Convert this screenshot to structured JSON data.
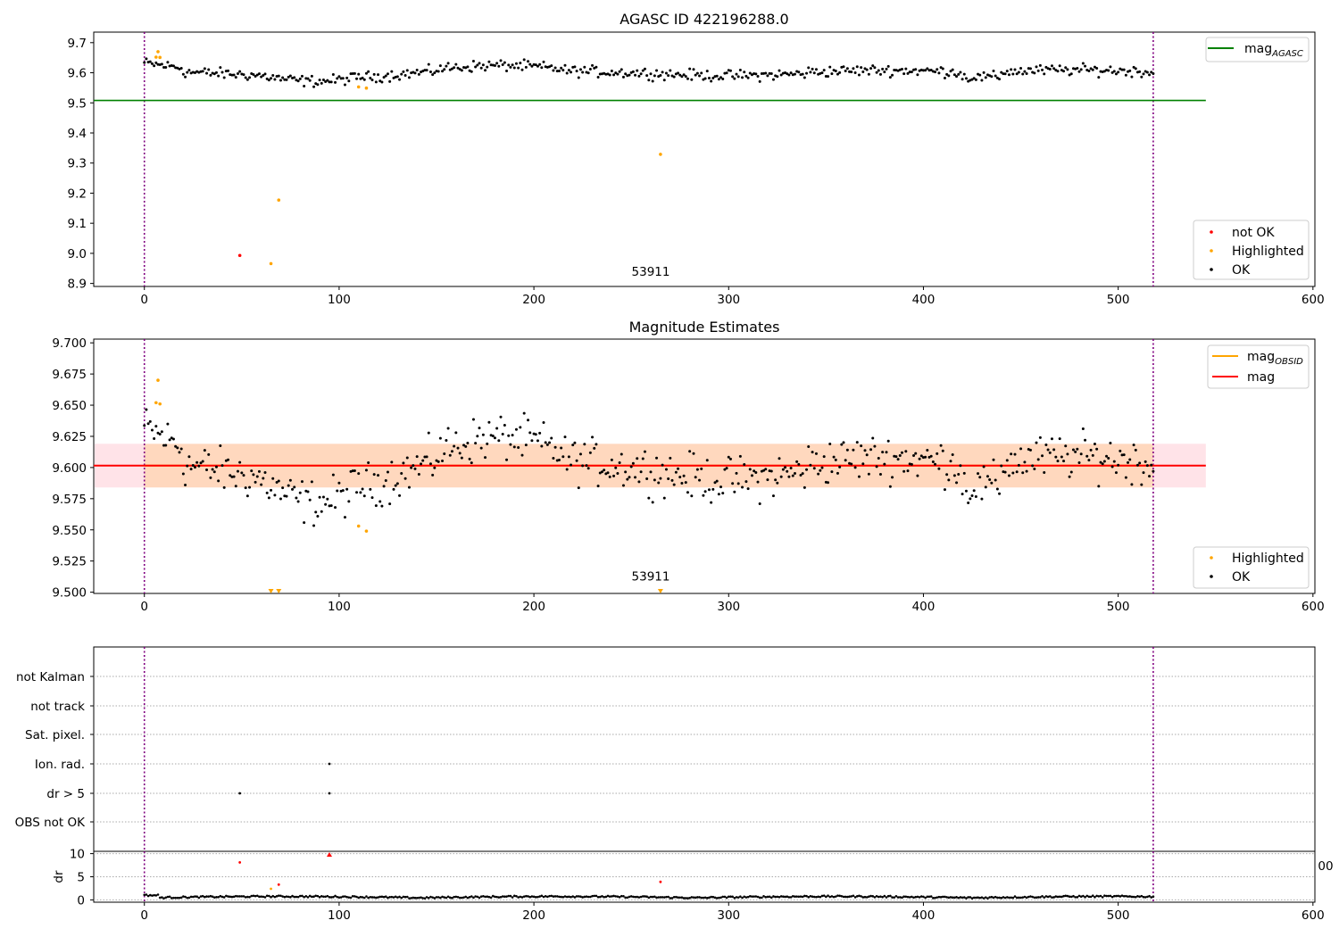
{
  "chart_data": [
    {
      "type": "scatter",
      "title": "AGASC ID 422196288.0",
      "xlim": [
        -26,
        601
      ],
      "ylim": [
        8.89,
        9.735
      ],
      "xticks": [
        0,
        100,
        200,
        300,
        400,
        500,
        600
      ],
      "yticks": [
        8.9,
        9.0,
        9.1,
        9.2,
        9.3,
        9.4,
        9.5,
        9.6,
        9.7
      ],
      "ytick_labels": [
        "8.9",
        "9.0",
        "9.1",
        "9.2",
        "9.3",
        "9.4",
        "9.5",
        "9.6",
        "9.7"
      ],
      "vlines": [
        0,
        518
      ],
      "mag_agasc": {
        "value": 9.508,
        "x_range": [
          -26,
          545
        ],
        "color": "#008000"
      },
      "annotation": {
        "text": "53911",
        "x": 260,
        "y": 8.925
      },
      "legend_line": {
        "label": "mag",
        "sub": "AGASC",
        "color": "#008000"
      },
      "legend_points": [
        {
          "label": "not OK",
          "color": "#ff0000"
        },
        {
          "label": "Highlighted",
          "color": "#ffa500"
        },
        {
          "label": "OK",
          "color": "#000000"
        }
      ],
      "series": [
        {
          "name": "not OK",
          "color": "#ff0000",
          "points": [
            [
              49,
              8.993
            ]
          ]
        },
        {
          "name": "Highlighted",
          "color": "#ffa500",
          "points": [
            [
              6,
              9.652
            ],
            [
              7,
              9.67
            ],
            [
              8,
              9.651
            ],
            [
              65,
              8.966
            ],
            [
              69,
              9.177
            ],
            [
              110,
              9.553
            ],
            [
              114,
              9.549
            ],
            [
              265,
              9.329
            ]
          ]
        }
      ]
    },
    {
      "type": "scatter",
      "title": "Magnitude Estimates",
      "xlim": [
        -26,
        601
      ],
      "ylim": [
        9.499,
        9.703
      ],
      "xticks": [
        0,
        100,
        200,
        300,
        400,
        500,
        600
      ],
      "yticks": [
        9.5,
        9.525,
        9.55,
        9.575,
        9.6,
        9.625,
        9.65,
        9.675,
        9.7
      ],
      "ytick_labels": [
        "9.500",
        "9.525",
        "9.550",
        "9.575",
        "9.600",
        "9.625",
        "9.650",
        "9.675",
        "9.700"
      ],
      "vlines": [
        0,
        518
      ],
      "mag": {
        "value": 9.6015,
        "color": "#ff0000",
        "x_range": [
          -26,
          545
        ]
      },
      "mag_band": {
        "low": 9.584,
        "high": 9.619,
        "x_range": [
          -26,
          545
        ],
        "color": "#ffc0cb"
      },
      "mag_obsid": {
        "value": 9.6015,
        "low": 9.584,
        "high": 9.619,
        "x_range": [
          0,
          518
        ],
        "color": "#ffa500"
      },
      "annotation": {
        "text": "53911",
        "x": 260,
        "y": 9.505
      },
      "legend_lines": [
        {
          "label": "mag",
          "sub": "OBSID",
          "color": "#ffa500"
        },
        {
          "label": "mag",
          "sub": "",
          "color": "#ff0000"
        }
      ],
      "legend_points": [
        {
          "label": "Highlighted",
          "color": "#ffa500"
        },
        {
          "label": "OK",
          "color": "#000000"
        }
      ],
      "series": [
        {
          "name": "Highlighted",
          "color": "#ffa500",
          "points": [
            [
              6,
              9.652
            ],
            [
              7,
              9.67
            ],
            [
              8,
              9.651
            ],
            [
              110,
              9.553
            ],
            [
              114,
              9.549
            ]
          ]
        }
      ],
      "off_scale_markers": [
        65,
        69,
        265
      ]
    },
    {
      "type": "scatter",
      "title": "",
      "xlim": [
        -26,
        601
      ],
      "categories": [
        "OBS not OK",
        "dr > 5",
        "Ion. rad.",
        "Sat. pixel.",
        "not track",
        "not Kalman"
      ],
      "vlines": [
        0,
        518
      ],
      "flag_points": [
        {
          "x": 49,
          "category": "dr > 5"
        },
        {
          "x": 95,
          "category": "dr > 5"
        },
        {
          "x": 95,
          "category": "Ion. rad."
        }
      ]
    },
    {
      "type": "scatter",
      "title": "",
      "xlim": [
        -26,
        601
      ],
      "ylim": [
        -0.5,
        10.5
      ],
      "xticks": [
        0,
        100,
        200,
        300,
        400,
        500,
        600
      ],
      "yticks": [
        0,
        5,
        10
      ],
      "ytick_labels": [
        "0",
        "5",
        "10"
      ],
      "ylabel": "dr",
      "vlines": [
        0,
        518
      ],
      "clipped_label": "00",
      "series": [
        {
          "name": "flagged",
          "color": "#ff0000",
          "points": [
            [
              49,
              8.1
            ],
            [
              69,
              3.3
            ],
            [
              265,
              3.9
            ]
          ]
        },
        {
          "name": "highlighted",
          "color": "#ffa500",
          "points": [
            [
              65,
              2.4
            ]
          ]
        }
      ],
      "upper_markers": [
        {
          "x": 95,
          "color": "#ff0000"
        }
      ]
    }
  ]
}
